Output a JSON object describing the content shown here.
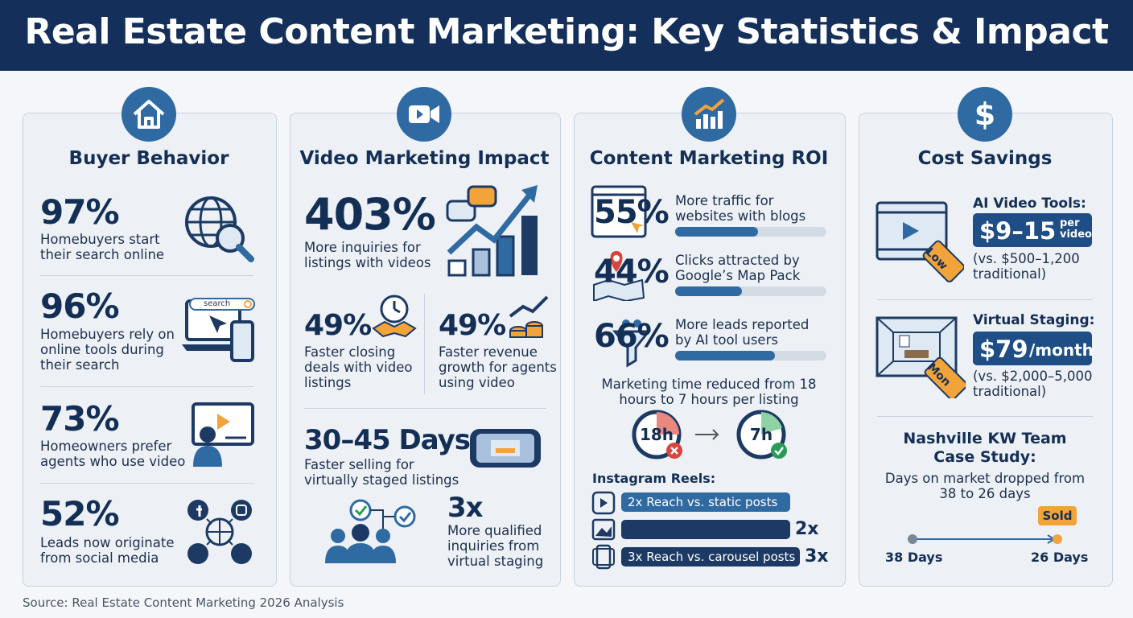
{
  "header": {
    "title": "Real Estate Content Marketing: Key Statistics & Impact"
  },
  "sections": [
    {
      "title": "Buyer Behavior",
      "stats": [
        {
          "value": "97%",
          "text": "Homebuyers start their search online"
        },
        {
          "value": "96%",
          "text": "Homebuyers rely on online tools during their search",
          "icon_text": "search"
        },
        {
          "value": "73%",
          "text": "Homeowners prefer agents who use video"
        },
        {
          "value": "52%",
          "text": "Leads now originate from social media"
        }
      ]
    },
    {
      "title": "Video Marketing Impact",
      "stats": [
        {
          "value": "403%",
          "text": "More inquiries for listings with videos"
        },
        {
          "value": "49%",
          "text": "Faster closing deals with video listings"
        },
        {
          "value": "49%",
          "text": "Faster revenue growth for agents using video"
        },
        {
          "value": "30–45 Days",
          "text": "Faster selling for virtually staged listings"
        },
        {
          "value": "3x",
          "text": "More qualified inquiries from virtual staging"
        }
      ]
    },
    {
      "title": "Content Marketing ROI",
      "stats": [
        {
          "value": 55,
          "label": "55%",
          "text": "More traffic for websites with blogs"
        },
        {
          "value": 44,
          "label": "44%",
          "text": "Clicks attracted by Google’s Map Pack"
        },
        {
          "value": 66,
          "label": "66%",
          "text": "More leads reported by AI tool users"
        }
      ],
      "time_note": "Marketing time reduced from 18 hours to 7 hours per listing",
      "clocks": [
        "18h",
        "7h"
      ],
      "reels_title": "Instagram Reels:",
      "reels": [
        {
          "text": "2x Reach vs. static posts"
        },
        {
          "multiplier": "2x"
        },
        {
          "text": "3x Reach vs. carousel posts",
          "multiplier": "3x"
        }
      ]
    },
    {
      "title": "Cost Savings",
      "items": [
        {
          "title": "AI Video Tools:",
          "price": "$9–15",
          "unit": "per video",
          "note": "(vs. $500–1,200 traditional)",
          "tag": "Low"
        },
        {
          "title": "Virtual Staging:",
          "price": "$79",
          "unit": "/month",
          "note": "(vs. $2,000–5,000 traditional)",
          "tag": "Mon"
        }
      ],
      "case_study": {
        "title": "Nashville KW Team Case Study:",
        "text": "Days on market dropped from 38 to 26 days",
        "badge": "Sold",
        "start": "38 Days",
        "end": "26 Days"
      }
    }
  ],
  "source": "Source: Real Estate Content Marketing 2026 Analysis"
}
